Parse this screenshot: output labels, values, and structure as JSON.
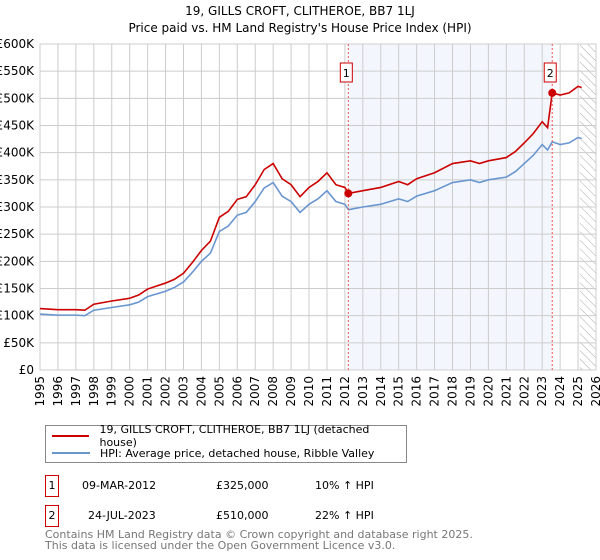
{
  "chart_data": {
    "type": "line",
    "title": "19, GILLS CROFT, CLITHEROE, BB7 1LJ",
    "subtitle": "Price paid vs. HM Land Registry's House Price Index (HPI)",
    "xlim": [
      1995,
      2026
    ],
    "ylim": [
      0,
      600000
    ],
    "y_ticks": [
      "£0",
      "£50K",
      "£100K",
      "£150K",
      "£200K",
      "£250K",
      "£300K",
      "£350K",
      "£400K",
      "£450K",
      "£500K",
      "£550K",
      "£600K"
    ],
    "x_ticks": [
      "1995",
      "1996",
      "1997",
      "1998",
      "1999",
      "2000",
      "2001",
      "2002",
      "2003",
      "2004",
      "2005",
      "2006",
      "2007",
      "2008",
      "2009",
      "2010",
      "2011",
      "2012",
      "2013",
      "2014",
      "2015",
      "2016",
      "2017",
      "2018",
      "2019",
      "2020",
      "2021",
      "2022",
      "2023",
      "2024",
      "2025",
      "2026"
    ],
    "grid": true,
    "x": [
      1995,
      1996,
      1997,
      1997.5,
      1998,
      1999,
      2000,
      2000.5,
      2001,
      2002,
      2002.5,
      2003,
      2003.5,
      2004,
      2004.5,
      2005,
      2005.5,
      2006,
      2006.5,
      2007,
      2007.5,
      2008,
      2008.5,
      2009,
      2009.5,
      2010,
      2010.5,
      2011,
      2011.5,
      2012,
      2012.2,
      2013,
      2014,
      2015,
      2015.5,
      2016,
      2017,
      2018,
      2019,
      2019.5,
      2020,
      2021,
      2021.5,
      2022,
      2022.5,
      2023,
      2023.3,
      2023.56,
      2024,
      2024.5,
      2025,
      2025.2
    ],
    "series": [
      {
        "name": "19, GILLS CROFT, CLITHEROE, BB7 1LJ (detached house)",
        "color": "#cc0000",
        "values_k": [
          113,
          111,
          111,
          110,
          121,
          127,
          132,
          138,
          149,
          160,
          167,
          178,
          198,
          220,
          237,
          281,
          292,
          314,
          319,
          341,
          369,
          380,
          352,
          341,
          319,
          336,
          347,
          363,
          341,
          336,
          325,
          330,
          336,
          347,
          341,
          352,
          363,
          380,
          385,
          380,
          385,
          391,
          402,
          418,
          435,
          457,
          446,
          510,
          506,
          510,
          522,
          520
        ]
      },
      {
        "name": "HPI: Average price, detached house, Ribble Valley",
        "color": "#6a96d0",
        "values_k": [
          103,
          101,
          101,
          100,
          110,
          115,
          120,
          125,
          135,
          145,
          152,
          162,
          180,
          200,
          215,
          255,
          265,
          285,
          290,
          310,
          335,
          345,
          320,
          310,
          290,
          305,
          315,
          330,
          310,
          305,
          295,
          300,
          305,
          315,
          310,
          320,
          330,
          345,
          350,
          345,
          350,
          355,
          365,
          380,
          395,
          415,
          405,
          420,
          415,
          418,
          428,
          426
        ]
      }
    ],
    "sales": [
      {
        "label": "1",
        "x": 2012.19,
        "value_k": 325,
        "date": "09-MAR-2012",
        "price": "£325,000",
        "hpi": "10% ↑ HPI"
      },
      {
        "label": "2",
        "x": 2023.56,
        "value_k": 510,
        "date": "24-JUL-2023",
        "price": "£510,000",
        "hpi": "22% ↑ HPI"
      }
    ],
    "shaded_range": [
      2012.19,
      2023.56
    ],
    "projection_start": 2025.1
  },
  "footer": {
    "line1": "Contains HM Land Registry data © Crown copyright and database right 2025.",
    "line2": "This data is licensed under the Open Government Licence v3.0."
  }
}
